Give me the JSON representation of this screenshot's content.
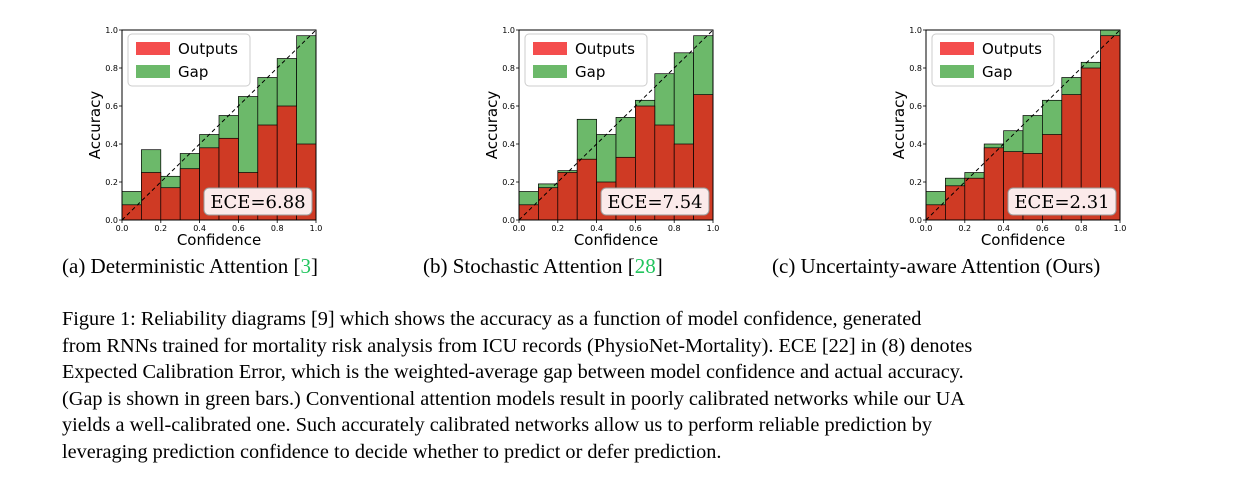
{
  "chart_data": [
    {
      "type": "bar",
      "subcaption": {
        "label": "(a) Deterministic Attention [",
        "cite": "3",
        "close": "]"
      },
      "x_bins": [
        0.0,
        0.1,
        0.2,
        0.3,
        0.4,
        0.5,
        0.6,
        0.7,
        0.8,
        0.9
      ],
      "series": [
        {
          "name": "Outputs",
          "values": [
            0.08,
            0.25,
            0.17,
            0.27,
            0.38,
            0.43,
            0.25,
            0.5,
            0.6,
            0.4
          ]
        },
        {
          "name": "Gap",
          "values": [
            0.15,
            0.37,
            0.23,
            0.35,
            0.45,
            0.55,
            0.65,
            0.75,
            0.85,
            0.97
          ]
        }
      ],
      "ece": "ECE=6.88",
      "xlabel": "Confidence",
      "ylabel": "Accuracy",
      "xlim": [
        0,
        1
      ],
      "ylim": [
        0,
        1
      ],
      "xticks": [
        "0.0",
        "0.2",
        "0.4",
        "0.6",
        "0.8",
        "1.0"
      ],
      "yticks": [
        "0.0",
        "0.2",
        "0.4",
        "0.6",
        "0.8",
        "1.0"
      ],
      "legend": "top-left",
      "colors": {
        "outputs": "#cf3a24",
        "gap": "#6cb96a",
        "edge": "#000000"
      }
    },
    {
      "type": "bar",
      "subcaption": {
        "label": "(b) Stochastic Attention [",
        "cite": "28",
        "close": "]"
      },
      "x_bins": [
        0.0,
        0.1,
        0.2,
        0.3,
        0.4,
        0.5,
        0.6,
        0.7,
        0.8,
        0.9
      ],
      "series": [
        {
          "name": "Outputs",
          "values": [
            0.08,
            0.17,
            0.25,
            0.32,
            0.2,
            0.33,
            0.6,
            0.5,
            0.4,
            0.66
          ]
        },
        {
          "name": "Gap",
          "values": [
            0.15,
            0.19,
            0.26,
            0.53,
            0.45,
            0.54,
            0.63,
            0.77,
            0.88,
            0.97
          ]
        }
      ],
      "ece": "ECE=7.54",
      "xlabel": "Confidence",
      "ylabel": "Accuracy",
      "xlim": [
        0,
        1
      ],
      "ylim": [
        0,
        1
      ],
      "xticks": [
        "0.0",
        "0.2",
        "0.4",
        "0.6",
        "0.8",
        "1.0"
      ],
      "yticks": [
        "0.0",
        "0.2",
        "0.4",
        "0.6",
        "0.8",
        "1.0"
      ],
      "legend": "top-left",
      "colors": {
        "outputs": "#cf3a24",
        "gap": "#6cb96a",
        "edge": "#000000"
      }
    },
    {
      "type": "bar",
      "subcaption": {
        "label": "(c) Uncertainty-aware Attention (Ours)",
        "cite": "",
        "close": ""
      },
      "x_bins": [
        0.0,
        0.1,
        0.2,
        0.3,
        0.4,
        0.5,
        0.6,
        0.7,
        0.8,
        0.9
      ],
      "series": [
        {
          "name": "Outputs",
          "values": [
            0.08,
            0.18,
            0.22,
            0.38,
            0.36,
            0.35,
            0.45,
            0.66,
            0.8,
            0.97
          ]
        },
        {
          "name": "Gap",
          "values": [
            0.15,
            0.22,
            0.25,
            0.4,
            0.47,
            0.55,
            0.63,
            0.75,
            0.83,
            1.0
          ]
        }
      ],
      "ece": "ECE=2.31",
      "xlabel": "Confidence",
      "ylabel": "Accuracy",
      "xlim": [
        0,
        1
      ],
      "ylim": [
        0,
        1
      ],
      "xticks": [
        "0.0",
        "0.2",
        "0.4",
        "0.6",
        "0.8",
        "1.0"
      ],
      "yticks": [
        "0.0",
        "0.2",
        "0.4",
        "0.6",
        "0.8",
        "1.0"
      ],
      "legend": "top-left",
      "colors": {
        "outputs": "#cf3a24",
        "gap": "#6cb96a",
        "edge": "#000000"
      }
    }
  ],
  "caption": {
    "line1": "Figure 1: Reliability diagrams [9] which shows the accuracy as a function of model confidence, generated",
    "line2": "from RNNs trained for mortality risk analysis from ICU records (PhysioNet-Mortality). ECE [22] in (8) denotes",
    "line3": "Expected Calibration Error, which is the weighted-average gap between model confidence and actual accuracy.",
    "line4": "(Gap is shown in green bars.) Conventional attention models result in poorly calibrated networks while our UA",
    "line5": "yields a well-calibrated one. Such accurately calibrated networks allow us to perform reliable prediction by",
    "line6": "leveraging prediction confidence to decide whether to predict or defer prediction."
  }
}
